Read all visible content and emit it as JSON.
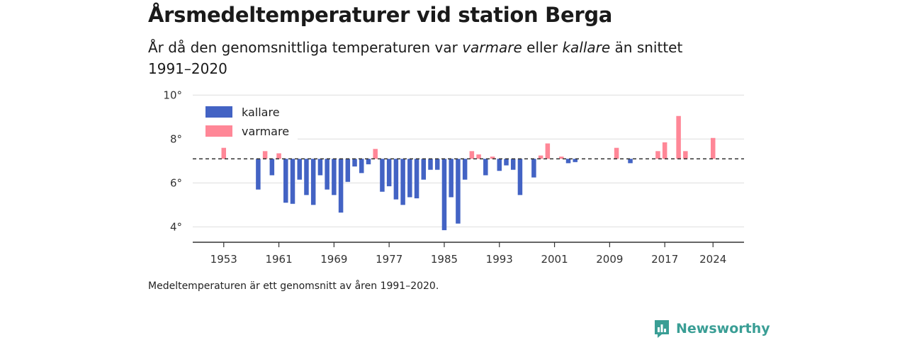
{
  "header": {
    "title": "Årsmedeltemperaturer vid station Berga",
    "subtitle_pre": "År då den genomsnittliga temperaturen var ",
    "subtitle_warm": "varmare",
    "subtitle_mid": " eller ",
    "subtitle_cold": "kallare",
    "subtitle_post": " än snittet 1991–2020"
  },
  "footnote": "Medeltemperaturen är ett genomsnitt av åren 1991–2020.",
  "brand": {
    "name": "Newsworthy",
    "icon": "newsworthy-logo-icon",
    "color": "#3a9e95"
  },
  "colors": {
    "kallare": "#4363c4",
    "varmare": "#ff8797",
    "reference": "#333333"
  },
  "chart_data": {
    "type": "bar",
    "baseline": 7.1,
    "ylim": [
      3.3,
      10.3
    ],
    "yticks": [
      4,
      6,
      8,
      10
    ],
    "ytick_labels": [
      "4°",
      "6°",
      "8°",
      "10°"
    ],
    "xlim": [
      1948.5,
      2028.5
    ],
    "xticks": [
      1953,
      1961,
      1969,
      1977,
      1985,
      1993,
      2001,
      2009,
      2017,
      2024
    ],
    "xtick_labels": [
      "1953",
      "1961",
      "1969",
      "1977",
      "1985",
      "1993",
      "2001",
      "2009",
      "2017",
      "2024"
    ],
    "grid": true,
    "legend_position": "top-left",
    "series": [
      {
        "name": "kallare",
        "points": [
          {
            "year": 1958,
            "value": 5.7
          },
          {
            "year": 1960,
            "value": 6.35
          },
          {
            "year": 1962,
            "value": 5.1
          },
          {
            "year": 1963,
            "value": 5.05
          },
          {
            "year": 1964,
            "value": 6.15
          },
          {
            "year": 1965,
            "value": 5.45
          },
          {
            "year": 1966,
            "value": 5.0
          },
          {
            "year": 1967,
            "value": 6.35
          },
          {
            "year": 1968,
            "value": 5.7
          },
          {
            "year": 1969,
            "value": 5.45
          },
          {
            "year": 1970,
            "value": 4.65
          },
          {
            "year": 1971,
            "value": 6.05
          },
          {
            "year": 1972,
            "value": 6.75
          },
          {
            "year": 1973,
            "value": 6.45
          },
          {
            "year": 1974,
            "value": 6.85
          },
          {
            "year": 1976,
            "value": 5.6
          },
          {
            "year": 1977,
            "value": 5.85
          },
          {
            "year": 1978,
            "value": 5.25
          },
          {
            "year": 1979,
            "value": 5.0
          },
          {
            "year": 1980,
            "value": 5.35
          },
          {
            "year": 1981,
            "value": 5.3
          },
          {
            "year": 1982,
            "value": 6.15
          },
          {
            "year": 1983,
            "value": 6.6
          },
          {
            "year": 1984,
            "value": 6.6
          },
          {
            "year": 1985,
            "value": 3.85
          },
          {
            "year": 1986,
            "value": 5.35
          },
          {
            "year": 1987,
            "value": 4.15
          },
          {
            "year": 1988,
            "value": 6.15
          },
          {
            "year": 1991,
            "value": 6.35
          },
          {
            "year": 1993,
            "value": 6.55
          },
          {
            "year": 1994,
            "value": 6.8
          },
          {
            "year": 1995,
            "value": 6.6
          },
          {
            "year": 1996,
            "value": 5.45
          },
          {
            "year": 1998,
            "value": 6.25
          },
          {
            "year": 2003,
            "value": 6.9
          },
          {
            "year": 2004,
            "value": 6.95
          },
          {
            "year": 2012,
            "value": 6.9
          }
        ]
      },
      {
        "name": "varmare",
        "points": [
          {
            "year": 1953,
            "value": 7.6
          },
          {
            "year": 1959,
            "value": 7.45
          },
          {
            "year": 1961,
            "value": 7.35
          },
          {
            "year": 1975,
            "value": 7.55
          },
          {
            "year": 1989,
            "value": 7.45
          },
          {
            "year": 1990,
            "value": 7.3
          },
          {
            "year": 1992,
            "value": 7.2
          },
          {
            "year": 1999,
            "value": 7.25
          },
          {
            "year": 2000,
            "value": 7.8
          },
          {
            "year": 2002,
            "value": 7.2
          },
          {
            "year": 2010,
            "value": 7.6
          },
          {
            "year": 2016,
            "value": 7.45
          },
          {
            "year": 2017,
            "value": 7.85
          },
          {
            "year": 2019,
            "value": 9.05
          },
          {
            "year": 2020,
            "value": 7.45
          },
          {
            "year": 2024,
            "value": 8.05
          }
        ]
      }
    ]
  }
}
